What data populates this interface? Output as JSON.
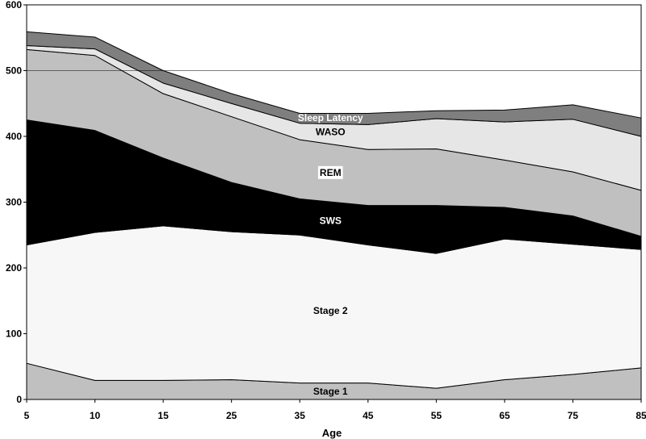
{
  "chart_data": {
    "type": "area",
    "stacked": true,
    "title": "",
    "xlabel": "Age",
    "ylabel": "",
    "x": [
      5,
      10,
      15,
      25,
      35,
      45,
      55,
      65,
      75,
      85
    ],
    "x_tick_labels": [
      "5",
      "10",
      "15",
      "25",
      "35",
      "45",
      "55",
      "65",
      "75",
      "85"
    ],
    "ylim": [
      0,
      600
    ],
    "y_ticks": [
      0,
      100,
      200,
      300,
      400,
      500,
      600
    ],
    "y_tick_labels": [
      "0",
      "100",
      "200",
      "300",
      "400",
      "500",
      "600"
    ],
    "reference_line": 500,
    "legend": "none",
    "series": [
      {
        "name": "Stage 1",
        "label": "Stage 1",
        "color": "#c0c0c0",
        "label_color": "#000000",
        "label_bg": "",
        "label_at": {
          "x": 39.5,
          "y": 12
        },
        "values": [
          55,
          29,
          29,
          30,
          25,
          25,
          17,
          30,
          38,
          48
        ]
      },
      {
        "name": "Stage 2",
        "label": "Stage 2",
        "color": "#f7f7f7",
        "label_color": "#000000",
        "label_bg": "",
        "label_at": {
          "x": 39.5,
          "y": 135
        },
        "values": [
          180,
          225,
          235,
          225,
          225,
          210,
          205,
          214,
          198,
          180
        ]
      },
      {
        "name": "SWS",
        "label": "SWS",
        "color": "#000000",
        "label_color": "#ffffff",
        "label_bg": "",
        "label_at": {
          "x": 39.5,
          "y": 272
        },
        "values": [
          190,
          155,
          103,
          75,
          55,
          60,
          73,
          48,
          43,
          20
        ]
      },
      {
        "name": "REM",
        "label": "REM",
        "color": "#c0c0c0",
        "label_color": "#000000",
        "label_bg": "#ffffff",
        "label_at": {
          "x": 39.5,
          "y": 345
        },
        "values": [
          107,
          114,
          98,
          100,
          90,
          85,
          86,
          72,
          67,
          70
        ]
      },
      {
        "name": "WASO",
        "label": "WASO",
        "color": "#e6e6e6",
        "label_color": "#000000",
        "label_bg": "",
        "label_at": {
          "x": 39.5,
          "y": 407
        },
        "values": [
          6,
          10,
          16,
          20,
          25,
          38,
          46,
          58,
          80,
          82
        ]
      },
      {
        "name": "Sleep Latency",
        "label": "Sleep Latency",
        "color": "#7f7f7f",
        "label_color": "#ffffff",
        "label_bg": "",
        "label_at": {
          "x": 39.5,
          "y": 428
        },
        "values": [
          21,
          18,
          19,
          15,
          15,
          17,
          12,
          18,
          22,
          28
        ]
      }
    ]
  }
}
